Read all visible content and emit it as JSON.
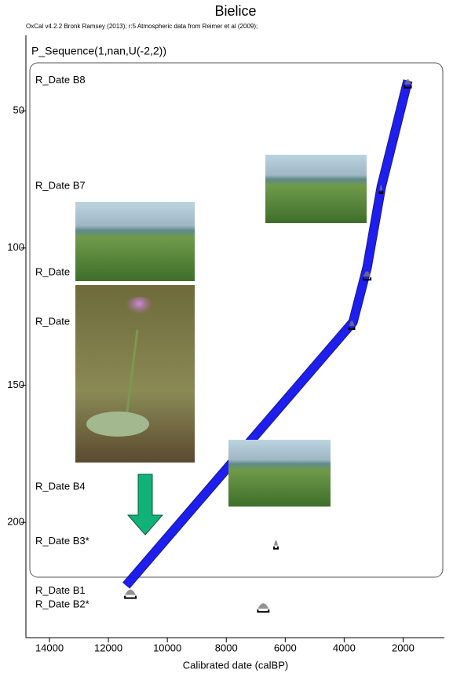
{
  "chart_data": {
    "type": "line",
    "title": "Bielice",
    "subtitle": "OxCal v4.2.2 Bronk Ramsey (2013); r:5 Atmospheric data from Reimer et al (2009);",
    "annotation": "P_Sequence(1,nan,U(-2,2))",
    "x_label": "Calibrated date (calBP)",
    "xlim": [
      14800,
      600
    ],
    "ylim": [
      22.5,
      242
    ],
    "xticks": [
      14000,
      12000,
      10000,
      8000,
      6000,
      4000,
      2000
    ],
    "yticks": [
      50,
      100,
      150,
      200
    ],
    "color": "#2020ff",
    "x": [
      1840,
      2740,
      3220,
      3700,
      11400
    ],
    "values": [
      39,
      77.7,
      107,
      127,
      223
    ],
    "samples": [
      {
        "label": "R_Date B8",
        "depth": 39,
        "range": [
          1950,
          1730
        ]
      },
      {
        "label": "R_Date B7",
        "depth": 77.5,
        "range": [
          2800,
          2700
        ]
      },
      {
        "label": "R_Date",
        "depth": 109,
        "range": [
          3350,
          3100
        ]
      },
      {
        "label": "R_Date",
        "depth": 127,
        "range": [
          3830,
          3650
        ]
      },
      {
        "label": "R_Date B4",
        "depth": 187
      },
      {
        "label": "R_Date B3*",
        "depth": 207,
        "range": [
          6380,
          6250
        ]
      },
      {
        "label": "R_Date B1",
        "depth": 225,
        "range": [
          11440,
          11070
        ]
      },
      {
        "label": "R_Date B2*",
        "depth": 230,
        "range": [
          6930,
          6560
        ]
      }
    ]
  }
}
